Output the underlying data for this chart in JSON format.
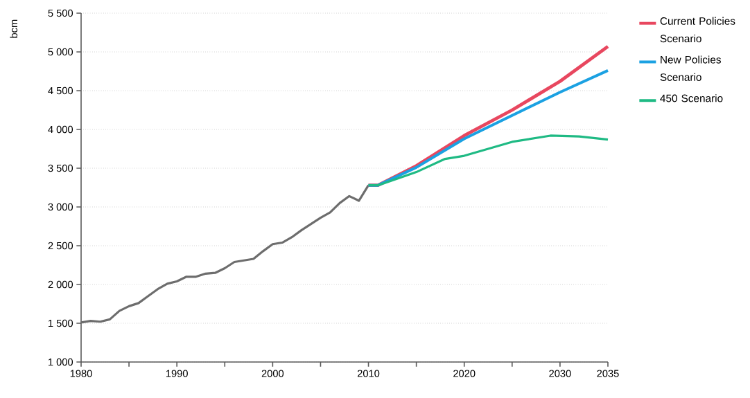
{
  "chart_data": {
    "type": "line",
    "ylabel": "bcm",
    "xlim": [
      1980,
      2035
    ],
    "ylim": [
      1000,
      5500
    ],
    "xticks": [
      1980,
      {
        "value": 1985,
        "label": null
      },
      1990,
      {
        "value": 1995,
        "label": null
      },
      2000,
      {
        "value": 2005,
        "label": null
      },
      2010,
      {
        "value": 2015,
        "label": null
      },
      2020,
      {
        "value": 2025,
        "label": null
      },
      2030,
      2035
    ],
    "yticks": [
      {
        "value": 1000,
        "label": "1 000"
      },
      {
        "value": 1500,
        "label": "1 500"
      },
      {
        "value": 2000,
        "label": "2 000"
      },
      {
        "value": 2500,
        "label": "2 500"
      },
      {
        "value": 3000,
        "label": "3 000"
      },
      {
        "value": 3500,
        "label": "3 500"
      },
      {
        "value": 4000,
        "label": "4 000"
      },
      {
        "value": 4500,
        "label": "4 500"
      },
      {
        "value": 5000,
        "label": "5 000"
      },
      {
        "value": 5500,
        "label": "5 500"
      }
    ],
    "grid": "y",
    "legend": "top right",
    "line_style": "solid",
    "marker": "none",
    "series": [
      {
        "color": "#6d6d6d",
        "x": [
          1980,
          1981,
          1982,
          1983,
          1984,
          1985,
          1986,
          1987,
          1988,
          1989,
          1990,
          1991,
          1992,
          1993,
          1994,
          1995,
          1996,
          1997,
          1998,
          1999,
          2000,
          2001,
          2002,
          2003,
          2004,
          2005,
          2006,
          2007,
          2008,
          2009,
          2010
        ],
        "values": [
          1510,
          1530,
          1520,
          1550,
          1660,
          1720,
          1760,
          1850,
          1940,
          2010,
          2040,
          2100,
          2100,
          2140,
          2150,
          2210,
          2290,
          2310,
          2330,
          2430,
          2520,
          2540,
          2610,
          2700,
          2780,
          2860,
          2930,
          3050,
          3140,
          3080,
          3280
        ]
      },
      {
        "name": "Current Policies Scenario",
        "color": "#e8475f",
        "x": [
          2010,
          2011,
          2015,
          2020,
          2025,
          2030,
          2035
        ],
        "values": [
          3280,
          3280,
          3530,
          3920,
          4250,
          4620,
          5070
        ]
      },
      {
        "name": "New Policies Scenario",
        "color": "#1ba1e2",
        "x": [
          2010,
          2011,
          2015,
          2020,
          2025,
          2030,
          2035
        ],
        "values": [
          3280,
          3280,
          3510,
          3880,
          4180,
          4480,
          4760
        ]
      },
      {
        "name": "450 Scenario",
        "color": "#1fba84",
        "x": [
          2010,
          2011,
          2015,
          2018,
          2020,
          2025,
          2029,
          2032,
          2035
        ],
        "values": [
          3280,
          3280,
          3450,
          3620,
          3660,
          3840,
          3920,
          3910,
          3870
        ]
      }
    ]
  }
}
